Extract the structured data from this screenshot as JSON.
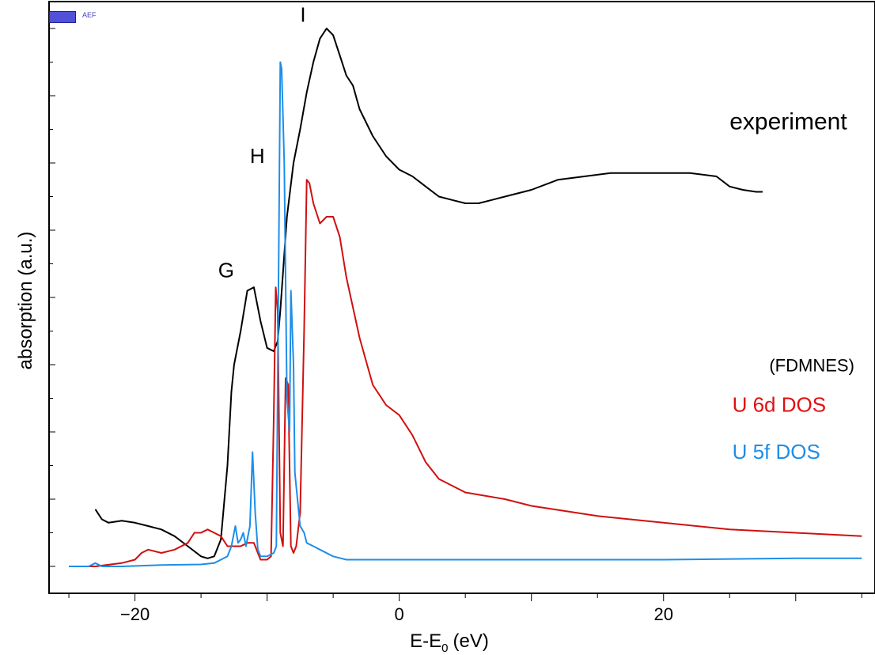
{
  "badge": {
    "text": "AEF"
  },
  "chart_data": {
    "type": "line",
    "xlabel": "E-E",
    "xlabel_sub": "0",
    "xlabel_unit": "(eV)",
    "ylabel": "absorption (a.u.)",
    "xlim": [
      -26.5,
      36
    ],
    "ylim": [
      -0.4,
      8.4
    ],
    "x_ticks": [
      -20,
      0,
      20
    ],
    "y_tick_labels_shown": false,
    "grid": false,
    "annotations": [
      {
        "text": "G",
        "x": -13.7,
        "y": 4.3,
        "color": "#000000"
      },
      {
        "text": "H",
        "x": -11.3,
        "y": 6.0,
        "color": "#000000"
      },
      {
        "text": "I",
        "x": -7.5,
        "y": 8.1,
        "color": "#000000"
      },
      {
        "text": "experiment",
        "x": 25,
        "y": 6.5,
        "color": "#000000"
      },
      {
        "text": "(FDMNES)",
        "x": 28,
        "y": 2.9,
        "color": "#000000"
      },
      {
        "text": "U 6d DOS",
        "x": 25.2,
        "y": 2.3,
        "color": "#e01010"
      },
      {
        "text": "U 5f DOS",
        "x": 25.2,
        "y": 1.6,
        "color": "#1e8ee8"
      }
    ],
    "series": [
      {
        "name": "experiment",
        "color": "#000000",
        "x": [
          -23,
          -22.5,
          -22,
          -21,
          -20,
          -19,
          -18,
          -17,
          -16,
          -15,
          -14.5,
          -14,
          -13.5,
          -13,
          -12.7,
          -12.5,
          -12,
          -11.5,
          -11,
          -10.5,
          -10,
          -9.5,
          -9.2,
          -9,
          -8.5,
          -8,
          -7.5,
          -7,
          -6.5,
          -6,
          -5.5,
          -5,
          -4.5,
          -4,
          -3.5,
          -3,
          -2,
          -1,
          0,
          1,
          2,
          3,
          4,
          5,
          6,
          7,
          8,
          10,
          12,
          14,
          16,
          18,
          20,
          22,
          24,
          25,
          26,
          27,
          27.5
        ],
        "y": [
          0.85,
          0.7,
          0.65,
          0.68,
          0.65,
          0.6,
          0.55,
          0.45,
          0.3,
          0.15,
          0.12,
          0.15,
          0.4,
          1.5,
          2.6,
          3.0,
          3.5,
          4.1,
          4.15,
          3.65,
          3.25,
          3.2,
          3.35,
          3.8,
          5.2,
          6.0,
          6.5,
          7.05,
          7.5,
          7.85,
          8.0,
          7.9,
          7.6,
          7.3,
          7.15,
          6.8,
          6.4,
          6.1,
          5.9,
          5.8,
          5.65,
          5.5,
          5.45,
          5.4,
          5.4,
          5.45,
          5.5,
          5.6,
          5.75,
          5.8,
          5.85,
          5.85,
          5.85,
          5.85,
          5.8,
          5.65,
          5.6,
          5.57,
          5.57
        ]
      },
      {
        "name": "U 6d DOS",
        "color": "#d01010",
        "x": [
          -25,
          -23,
          -21,
          -20,
          -19.5,
          -19,
          -18,
          -17,
          -16,
          -15.5,
          -15,
          -14.5,
          -14,
          -13.5,
          -13,
          -12,
          -11.5,
          -11,
          -10.5,
          -10,
          -9.7,
          -9.5,
          -9.35,
          -9.2,
          -9.0,
          -8.8,
          -8.6,
          -8.4,
          -8.2,
          -8.0,
          -7.8,
          -7.5,
          -7.2,
          -7.0,
          -6.8,
          -6.5,
          -6,
          -5.5,
          -5,
          -4.5,
          -4,
          -3,
          -2,
          -1,
          0,
          1,
          2,
          3,
          5,
          8,
          10,
          15,
          20,
          25,
          30,
          35
        ],
        "y": [
          0.0,
          0.0,
          0.05,
          0.1,
          0.2,
          0.25,
          0.2,
          0.25,
          0.35,
          0.5,
          0.5,
          0.55,
          0.5,
          0.45,
          0.3,
          0.3,
          0.35,
          0.35,
          0.1,
          0.1,
          0.15,
          2.2,
          4.15,
          3.8,
          0.5,
          0.3,
          2.8,
          2.7,
          0.3,
          0.2,
          0.3,
          0.8,
          3.5,
          5.75,
          5.7,
          5.4,
          5.1,
          5.2,
          5.2,
          4.9,
          4.3,
          3.4,
          2.7,
          2.4,
          2.25,
          1.95,
          1.55,
          1.3,
          1.1,
          1.0,
          0.9,
          0.75,
          0.65,
          0.55,
          0.5,
          0.45
        ]
      },
      {
        "name": "U 5f DOS",
        "color": "#1e8ee8",
        "x": [
          -25,
          -23.5,
          -23,
          -22.5,
          -21,
          -18,
          -15,
          -14,
          -13.5,
          -13,
          -12.7,
          -12.4,
          -12.2,
          -12.0,
          -11.8,
          -11.6,
          -11.3,
          -11.1,
          -10.9,
          -10.7,
          -10.5,
          -10.0,
          -9.5,
          -9.3,
          -9.0,
          -8.9,
          -8.7,
          -8.5,
          -8.3,
          -8.2,
          -8.0,
          -7.9,
          -7.7,
          -7.5,
          -7.2,
          -7.0,
          -6.5,
          -6,
          -5,
          -4,
          -3,
          0,
          5,
          10,
          20,
          30,
          35
        ],
        "y": [
          0.0,
          0.0,
          0.05,
          0.0,
          0.0,
          0.02,
          0.03,
          0.05,
          0.1,
          0.15,
          0.3,
          0.6,
          0.35,
          0.4,
          0.5,
          0.3,
          0.6,
          1.7,
          0.8,
          0.25,
          0.15,
          0.15,
          0.2,
          0.3,
          7.5,
          7.4,
          6.0,
          2.5,
          2.0,
          4.1,
          3.0,
          1.4,
          1.0,
          0.6,
          0.5,
          0.35,
          0.3,
          0.25,
          0.15,
          0.1,
          0.1,
          0.1,
          0.1,
          0.1,
          0.1,
          0.12,
          0.12
        ]
      }
    ]
  }
}
